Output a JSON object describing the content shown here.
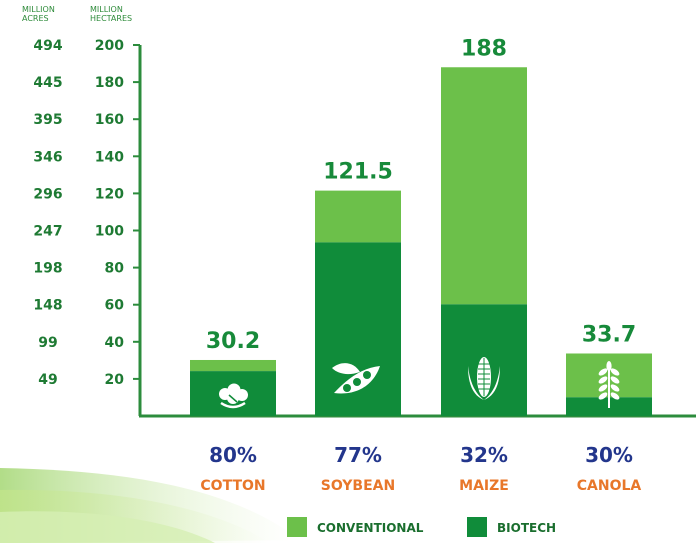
{
  "chart_data": {
    "type": "bar",
    "stacked": true,
    "axis_headers": {
      "acres": "MILLION ACRES",
      "hectares": "MILLION HECTARES"
    },
    "y_ticks_hectares": [
      "20",
      "40",
      "60",
      "80",
      "100",
      "120",
      "140",
      "160",
      "180",
      "200"
    ],
    "y_ticks_acres": [
      "49",
      "99",
      "148",
      "198",
      "247",
      "296",
      "346",
      "395",
      "445",
      "494"
    ],
    "ylim": [
      0,
      200
    ],
    "grid": false,
    "categories": [
      "COTTON",
      "SOYBEAN",
      "MAIZE",
      "CANOLA"
    ],
    "totals": [
      30.2,
      121.5,
      188,
      33.7
    ],
    "total_labels": [
      "30.2",
      "121.5",
      "188",
      "33.7"
    ],
    "biotech_share_labels": [
      "80%",
      "77%",
      "32%",
      "30%"
    ],
    "series": [
      {
        "name": "BIOTECH",
        "values": [
          24.2,
          93.6,
          60.2,
          10.1
        ]
      },
      {
        "name": "CONVENTIONAL",
        "values": [
          6.0,
          27.9,
          127.8,
          23.6
        ]
      }
    ],
    "legend": {
      "placement": "bottom-right",
      "order": [
        "CONVENTIONAL",
        "BIOTECH"
      ]
    },
    "colors": {
      "CONVENTIONAL": "#6cc04a",
      "BIOTECH": "#108c3a",
      "axis": "#2c8c3c"
    },
    "icons": [
      "cotton-boll-icon",
      "soybean-pod-icon",
      "corn-cob-icon",
      "wheat-stalk-icon"
    ]
  }
}
